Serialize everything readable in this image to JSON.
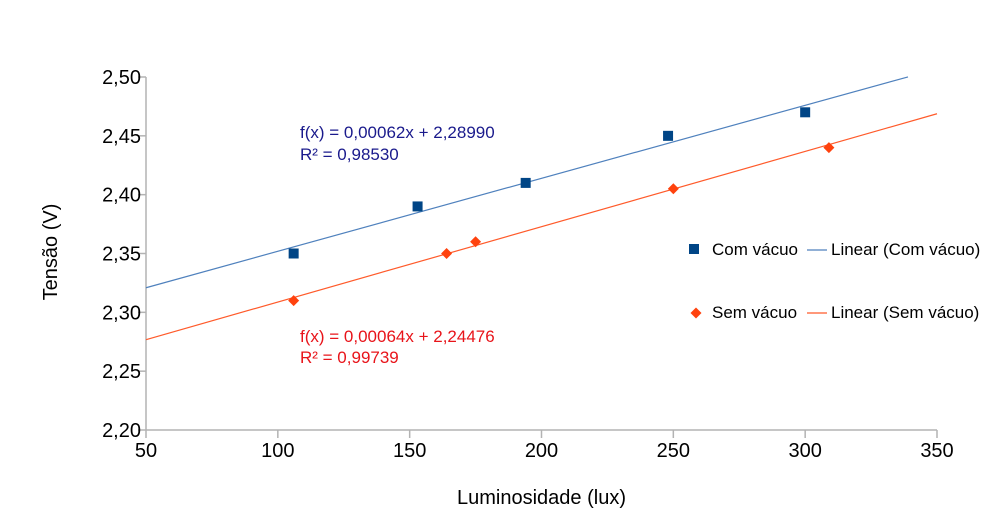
{
  "chart_data": {
    "type": "scatter",
    "title": "",
    "xlabel": "Luminosidade (lux)",
    "ylabel": "Tensão (V)",
    "xlim": [
      50,
      350
    ],
    "ylim": [
      2.2,
      2.5
    ],
    "x_ticks": [
      "50",
      "100",
      "150",
      "200",
      "250",
      "300",
      "350"
    ],
    "y_ticks": [
      "2,20",
      "2,25",
      "2,30",
      "2,35",
      "2,40",
      "2,45",
      "2,50"
    ],
    "grid": false,
    "legend_position": "right",
    "series": [
      {
        "name": "Com vácuo",
        "color": "#004586",
        "marker": "square",
        "x": [
          106,
          153,
          194,
          248,
          300
        ],
        "y": [
          2.35,
          2.39,
          2.41,
          2.45,
          2.47
        ],
        "trendline": {
          "name": "Linear (Com vácuo)",
          "color": "#4f81bd",
          "slope": 0.00062,
          "intercept": 2.2899,
          "x_range": [
            50,
            339
          ],
          "equation": "f(x) = 0,00062x + 2,28990",
          "r2": "R² = 0,98530",
          "label_color": "#1a1a8c"
        }
      },
      {
        "name": "Sem vácuo",
        "color": "#ff420e",
        "marker": "diamond",
        "x": [
          106,
          164,
          175,
          250,
          309
        ],
        "y": [
          2.31,
          2.35,
          2.36,
          2.405,
          2.44
        ],
        "trendline": {
          "name": "Linear (Sem vácuo)",
          "color": "#ff5a2a",
          "slope": 0.00064,
          "intercept": 2.24476,
          "x_range": [
            50,
            350
          ],
          "equation": "f(x) = 0,00064x + 2,24476",
          "r2": "R² = 0,99739",
          "label_color": "#e8141a"
        }
      }
    ]
  }
}
